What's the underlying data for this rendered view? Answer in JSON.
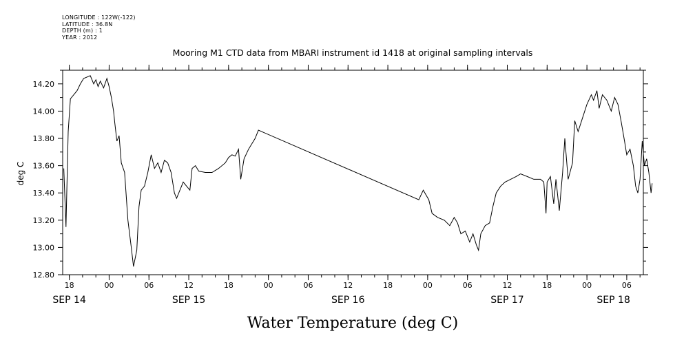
{
  "meta": {
    "longitude": "LONGITUDE : 122W(-122)",
    "latitude": "LATITUDE : 36.8N",
    "depth": "DEPTH (m) : 1",
    "year": "YEAR : 2012"
  },
  "chart_data": {
    "type": "line",
    "title": "Mooring M1 CTD data from MBARI instrument id 1418 at original sampling intervals",
    "xlabel": "Water Temperature (deg C)",
    "ylabel": "deg C",
    "ylim": [
      12.8,
      14.3
    ],
    "xlim": [
      "2012-09-14T17:00",
      "2012-09-18T08:30"
    ],
    "y_ticks": [
      "12.80",
      "13.00",
      "13.20",
      "13.40",
      "13.60",
      "13.80",
      "14.00",
      "14.20"
    ],
    "x_tick_labels": [
      {
        "t": "2012-09-14T18:00",
        "label": "18"
      },
      {
        "t": "2012-09-15T00:00",
        "label": "00"
      },
      {
        "t": "2012-09-15T06:00",
        "label": "06"
      },
      {
        "t": "2012-09-15T12:00",
        "label": "12"
      },
      {
        "t": "2012-09-15T18:00",
        "label": "18"
      },
      {
        "t": "2012-09-16T00:00",
        "label": "00"
      },
      {
        "t": "2012-09-16T06:00",
        "label": "06"
      },
      {
        "t": "2012-09-16T12:00",
        "label": "12"
      },
      {
        "t": "2012-09-16T18:00",
        "label": "18"
      },
      {
        "t": "2012-09-17T00:00",
        "label": "00"
      },
      {
        "t": "2012-09-17T06:00",
        "label": "06"
      },
      {
        "t": "2012-09-17T12:00",
        "label": "12"
      },
      {
        "t": "2012-09-17T18:00",
        "label": "18"
      },
      {
        "t": "2012-09-18T00:00",
        "label": "00"
      },
      {
        "t": "2012-09-18T06:00",
        "label": "06"
      }
    ],
    "date_labels": [
      {
        "t": "2012-09-14T18:00",
        "label": "SEP 14"
      },
      {
        "t": "2012-09-15T12:00",
        "label": "SEP 15"
      },
      {
        "t": "2012-09-16T12:00",
        "label": "SEP 16"
      },
      {
        "t": "2012-09-17T12:00",
        "label": "SEP 17"
      },
      {
        "t": "2012-09-18T04:00",
        "label": "SEP 18"
      }
    ],
    "grid": false,
    "series": [
      {
        "points": [
          [
            "2012-09-14T17:10",
            13.58
          ],
          [
            "2012-09-14T17:30",
            13.15
          ],
          [
            "2012-09-14T17:50",
            13.85
          ],
          [
            "2012-09-14T18:10",
            14.09
          ],
          [
            "2012-09-14T18:40",
            14.12
          ],
          [
            "2012-09-14T19:10",
            14.15
          ],
          [
            "2012-09-14T19:40",
            14.2
          ],
          [
            "2012-09-14T20:10",
            14.24
          ],
          [
            "2012-09-14T20:40",
            14.25
          ],
          [
            "2012-09-14T21:10",
            14.26
          ],
          [
            "2012-09-14T21:40",
            14.2
          ],
          [
            "2012-09-14T22:00",
            14.23
          ],
          [
            "2012-09-14T22:20",
            14.18
          ],
          [
            "2012-09-14T22:40",
            14.22
          ],
          [
            "2012-09-14T23:10",
            14.17
          ],
          [
            "2012-09-14T23:40",
            14.24
          ],
          [
            "2012-09-15T00:00",
            14.18
          ],
          [
            "2012-09-15T00:20",
            14.1
          ],
          [
            "2012-09-15T00:40",
            14.0
          ],
          [
            "2012-09-15T00:50",
            13.92
          ],
          [
            "2012-09-15T01:10",
            13.78
          ],
          [
            "2012-09-15T01:30",
            13.82
          ],
          [
            "2012-09-15T01:50",
            13.62
          ],
          [
            "2012-09-15T02:20",
            13.55
          ],
          [
            "2012-09-15T02:50",
            13.2
          ],
          [
            "2012-09-15T03:20",
            13.0
          ],
          [
            "2012-09-15T03:40",
            12.86
          ],
          [
            "2012-09-15T04:10",
            12.98
          ],
          [
            "2012-09-15T04:30",
            13.3
          ],
          [
            "2012-09-15T04:50",
            13.42
          ],
          [
            "2012-09-15T05:20",
            13.45
          ],
          [
            "2012-09-15T05:50",
            13.55
          ],
          [
            "2012-09-15T06:20",
            13.68
          ],
          [
            "2012-09-15T06:50",
            13.58
          ],
          [
            "2012-09-15T07:20",
            13.62
          ],
          [
            "2012-09-15T07:50",
            13.55
          ],
          [
            "2012-09-15T08:20",
            13.64
          ],
          [
            "2012-09-15T08:50",
            13.62
          ],
          [
            "2012-09-15T09:20",
            13.55
          ],
          [
            "2012-09-15T09:50",
            13.4
          ],
          [
            "2012-09-15T10:10",
            13.36
          ],
          [
            "2012-09-15T10:40",
            13.42
          ],
          [
            "2012-09-15T11:10",
            13.48
          ],
          [
            "2012-09-15T11:40",
            13.45
          ],
          [
            "2012-09-15T12:10",
            13.42
          ],
          [
            "2012-09-15T12:30",
            13.58
          ],
          [
            "2012-09-15T13:00",
            13.6
          ],
          [
            "2012-09-15T13:30",
            13.56
          ],
          [
            "2012-09-15T14:30",
            13.55
          ],
          [
            "2012-09-15T15:30",
            13.55
          ],
          [
            "2012-09-15T16:30",
            13.58
          ],
          [
            "2012-09-15T17:30",
            13.62
          ],
          [
            "2012-09-15T18:00",
            13.66
          ],
          [
            "2012-09-15T18:30",
            13.68
          ],
          [
            "2012-09-15T19:00",
            13.67
          ],
          [
            "2012-09-15T19:30",
            13.72
          ],
          [
            "2012-09-15T19:50",
            13.5
          ],
          [
            "2012-09-15T20:20",
            13.65
          ],
          [
            "2012-09-15T21:00",
            13.72
          ],
          [
            "2012-09-15T22:00",
            13.8
          ],
          [
            "2012-09-15T22:30",
            13.86
          ],
          [
            "2012-09-16T22:40",
            13.35
          ],
          [
            "2012-09-16T23:20",
            13.42
          ],
          [
            "2012-09-17T00:10",
            13.35
          ],
          [
            "2012-09-17T00:40",
            13.25
          ],
          [
            "2012-09-17T01:30",
            13.22
          ],
          [
            "2012-09-17T02:30",
            13.2
          ],
          [
            "2012-09-17T03:20",
            13.16
          ],
          [
            "2012-09-17T04:00",
            13.22
          ],
          [
            "2012-09-17T04:30",
            13.18
          ],
          [
            "2012-09-17T05:00",
            13.1
          ],
          [
            "2012-09-17T05:40",
            13.12
          ],
          [
            "2012-09-17T06:20",
            13.04
          ],
          [
            "2012-09-17T06:50",
            13.1
          ],
          [
            "2012-09-17T07:20",
            13.02
          ],
          [
            "2012-09-17T07:40",
            12.98
          ],
          [
            "2012-09-17T08:00",
            13.1
          ],
          [
            "2012-09-17T08:40",
            13.16
          ],
          [
            "2012-09-17T09:20",
            13.18
          ],
          [
            "2012-09-17T09:50",
            13.3
          ],
          [
            "2012-09-17T10:20",
            13.4
          ],
          [
            "2012-09-17T11:00",
            13.45
          ],
          [
            "2012-09-17T11:40",
            13.48
          ],
          [
            "2012-09-17T12:30",
            13.5
          ],
          [
            "2012-09-17T13:20",
            13.52
          ],
          [
            "2012-09-17T14:00",
            13.54
          ],
          [
            "2012-09-17T15:00",
            13.52
          ],
          [
            "2012-09-17T16:00",
            13.5
          ],
          [
            "2012-09-17T17:00",
            13.5
          ],
          [
            "2012-09-17T17:30",
            13.48
          ],
          [
            "2012-09-17T17:50",
            13.25
          ],
          [
            "2012-09-17T18:00",
            13.48
          ],
          [
            "2012-09-17T18:30",
            13.52
          ],
          [
            "2012-09-17T19:00",
            13.32
          ],
          [
            "2012-09-17T19:20",
            13.5
          ],
          [
            "2012-09-17T19:50",
            13.27
          ],
          [
            "2012-09-17T20:20",
            13.55
          ],
          [
            "2012-09-17T20:40",
            13.8
          ],
          [
            "2012-09-17T21:10",
            13.5
          ],
          [
            "2012-09-17T21:50",
            13.62
          ],
          [
            "2012-09-17T22:10",
            13.93
          ],
          [
            "2012-09-17T22:40",
            13.85
          ],
          [
            "2012-09-17T23:20",
            13.95
          ],
          [
            "2012-09-18T00:00",
            14.05
          ],
          [
            "2012-09-18T00:40",
            14.12
          ],
          [
            "2012-09-18T01:00",
            14.08
          ],
          [
            "2012-09-18T01:30",
            14.15
          ],
          [
            "2012-09-18T01:50",
            14.02
          ],
          [
            "2012-09-18T02:20",
            14.12
          ],
          [
            "2012-09-18T03:00",
            14.08
          ],
          [
            "2012-09-18T03:40",
            14.0
          ],
          [
            "2012-09-18T04:10",
            14.1
          ],
          [
            "2012-09-18T04:40",
            14.05
          ],
          [
            "2012-09-18T05:10",
            13.92
          ],
          [
            "2012-09-18T05:40",
            13.78
          ],
          [
            "2012-09-18T06:00",
            13.68
          ],
          [
            "2012-09-18T06:30",
            13.72
          ],
          [
            "2012-09-18T07:00",
            13.6
          ],
          [
            "2012-09-18T07:20",
            13.45
          ],
          [
            "2012-09-18T07:40",
            13.4
          ],
          [
            "2012-09-18T08:00",
            13.5
          ],
          [
            "2012-09-18T08:20",
            13.78
          ],
          [
            "2012-09-18T08:40",
            13.6
          ],
          [
            "2012-09-18T09:00",
            13.65
          ],
          [
            "2012-09-18T09:20",
            13.55
          ],
          [
            "2012-09-18T09:40",
            13.4
          ],
          [
            "2012-09-18T09:50",
            13.47
          ]
        ]
      }
    ]
  }
}
